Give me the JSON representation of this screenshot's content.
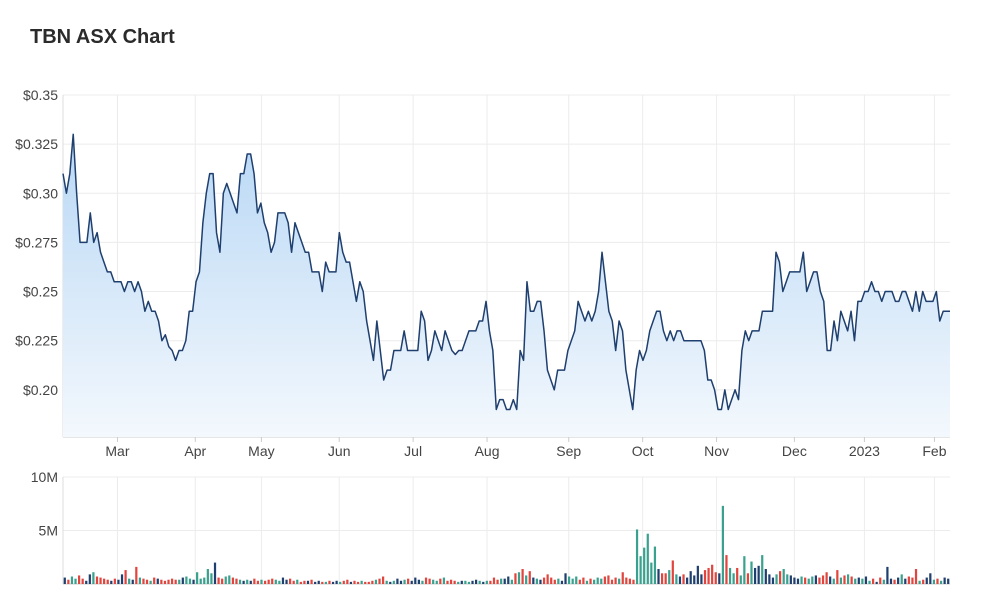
{
  "title": "TBN ASX Chart",
  "colors": {
    "line": "#1f3f6e",
    "area_top": "#b9d8f5",
    "area_bottom": "#f3f8fd",
    "grid": "#ececec",
    "volume_up": "#3aa18f",
    "volume_down": "#e0453e",
    "volume_neutral": "#1f3f6e"
  },
  "chart_data": [
    {
      "type": "area",
      "y_tick_labels": [
        "$0.35",
        "$0.325",
        "$0.30",
        "$0.275",
        "$0.25",
        "$0.225",
        "$0.20"
      ],
      "y_ticks": [
        0.35,
        0.325,
        0.3,
        0.275,
        0.25,
        0.225,
        0.2
      ],
      "ylim": [
        0.176,
        0.35
      ],
      "xlim": [
        0,
        228
      ],
      "x_tick_labels": [
        "Mar",
        "Apr",
        "May",
        "Jun",
        "Jul",
        "Aug",
        "Sep",
        "Oct",
        "Nov",
        "Dec",
        "2023",
        "Feb"
      ],
      "x_ticks": [
        14,
        34,
        51,
        71,
        90,
        109,
        130,
        149,
        168,
        188,
        206,
        224
      ],
      "grid": true,
      "series": [
        {
          "values": [
            0.31,
            0.3,
            0.31,
            0.33,
            0.3,
            0.275,
            0.275,
            0.275,
            0.29,
            0.275,
            0.28,
            0.27,
            0.265,
            0.26,
            0.26,
            0.255,
            0.255,
            0.255,
            0.25,
            0.255,
            0.255,
            0.25,
            0.255,
            0.25,
            0.24,
            0.245,
            0.24,
            0.24,
            0.235,
            0.225,
            0.228,
            0.222,
            0.22,
            0.215,
            0.22,
            0.22,
            0.225,
            0.24,
            0.24,
            0.255,
            0.26,
            0.285,
            0.3,
            0.31,
            0.31,
            0.28,
            0.27,
            0.3,
            0.305,
            0.3,
            0.295,
            0.29,
            0.31,
            0.31,
            0.32,
            0.32,
            0.31,
            0.29,
            0.295,
            0.285,
            0.28,
            0.27,
            0.275,
            0.29,
            0.29,
            0.29,
            0.285,
            0.27,
            0.285,
            0.28,
            0.275,
            0.27,
            0.27,
            0.26,
            0.26,
            0.26,
            0.25,
            0.265,
            0.26,
            0.26,
            0.26,
            0.28,
            0.27,
            0.265,
            0.265,
            0.255,
            0.245,
            0.255,
            0.25,
            0.235,
            0.225,
            0.215,
            0.235,
            0.22,
            0.205,
            0.21,
            0.21,
            0.22,
            0.22,
            0.22,
            0.23,
            0.22,
            0.22,
            0.22,
            0.22,
            0.24,
            0.235,
            0.215,
            0.22,
            0.23,
            0.225,
            0.22,
            0.23,
            0.225,
            0.22,
            0.218,
            0.22,
            0.22,
            0.225,
            0.23,
            0.23,
            0.23,
            0.235,
            0.235,
            0.245,
            0.23,
            0.22,
            0.19,
            0.195,
            0.195,
            0.19,
            0.19,
            0.195,
            0.19,
            0.22,
            0.215,
            0.255,
            0.24,
            0.24,
            0.245,
            0.245,
            0.23,
            0.21,
            0.205,
            0.2,
            0.21,
            0.21,
            0.21,
            0.22,
            0.225,
            0.23,
            0.245,
            0.24,
            0.235,
            0.24,
            0.235,
            0.24,
            0.25,
            0.27,
            0.255,
            0.24,
            0.235,
            0.22,
            0.235,
            0.23,
            0.21,
            0.2,
            0.19,
            0.21,
            0.22,
            0.215,
            0.22,
            0.23,
            0.235,
            0.24,
            0.24,
            0.23,
            0.225,
            0.23,
            0.225,
            0.23,
            0.23,
            0.225,
            0.225,
            0.225,
            0.225,
            0.225,
            0.225,
            0.22,
            0.205,
            0.205,
            0.2,
            0.19,
            0.19,
            0.2,
            0.19,
            0.195,
            0.2,
            0.195,
            0.22,
            0.23,
            0.225,
            0.23,
            0.23,
            0.23,
            0.24,
            0.24,
            0.24,
            0.24,
            0.27,
            0.265,
            0.25,
            0.255,
            0.26,
            0.26,
            0.26,
            0.26,
            0.27,
            0.25,
            0.255,
            0.26,
            0.26,
            0.25,
            0.245,
            0.22,
            0.22,
            0.235,
            0.225,
            0.24,
            0.235,
            0.23,
            0.24,
            0.225,
            0.245,
            0.245,
            0.25,
            0.25,
            0.255,
            0.25,
            0.25,
            0.245,
            0.25,
            0.25,
            0.25,
            0.245,
            0.245,
            0.25,
            0.25,
            0.245,
            0.24,
            0.25,
            0.24,
            0.25,
            0.245,
            0.245,
            0.245,
            0.25,
            0.235,
            0.24,
            0.24,
            0.24
          ]
        }
      ]
    },
    {
      "type": "bar",
      "y_tick_labels": [
        "10M",
        "5M"
      ],
      "y_ticks": [
        10000000,
        5000000
      ],
      "ylim": [
        0,
        10000000
      ],
      "grid": true,
      "series": [
        {
          "values": [
            0.6,
            0.4,
            0.7,
            0.5,
            0.8,
            0.5,
            0.3,
            0.9,
            1.1,
            0.7,
            0.6,
            0.5,
            0.4,
            0.3,
            0.5,
            0.4,
            0.9,
            1.3,
            0.5,
            0.4,
            1.6,
            0.6,
            0.5,
            0.4,
            0.3,
            0.6,
            0.5,
            0.4,
            0.3,
            0.4,
            0.5,
            0.4,
            0.4,
            0.6,
            0.7,
            0.5,
            0.4,
            1.1,
            0.5,
            0.6,
            1.4,
            1.0,
            2.0,
            0.6,
            0.5,
            0.7,
            0.8,
            0.6,
            0.5,
            0.4,
            0.3,
            0.4,
            0.3,
            0.5,
            0.3,
            0.4,
            0.3,
            0.4,
            0.5,
            0.4,
            0.3,
            0.6,
            0.4,
            0.5,
            0.3,
            0.4,
            0.2,
            0.3,
            0.3,
            0.4,
            0.2,
            0.3,
            0.2,
            0.2,
            0.3,
            0.2,
            0.3,
            0.2,
            0.3,
            0.4,
            0.2,
            0.3,
            0.2,
            0.3,
            0.2,
            0.2,
            0.3,
            0.4,
            0.5,
            0.7,
            0.3,
            0.2,
            0.3,
            0.5,
            0.3,
            0.4,
            0.5,
            0.3,
            0.6,
            0.4,
            0.3,
            0.6,
            0.5,
            0.4,
            0.3,
            0.5,
            0.6,
            0.3,
            0.4,
            0.3,
            0.2,
            0.3,
            0.3,
            0.2,
            0.3,
            0.4,
            0.3,
            0.2,
            0.3,
            0.3,
            0.6,
            0.4,
            0.5,
            0.5,
            0.7,
            0.4,
            1.0,
            1.1,
            1.4,
            0.8,
            1.2,
            0.6,
            0.5,
            0.4,
            0.6,
            0.9,
            0.6,
            0.4,
            0.5,
            0.3,
            1.0,
            0.7,
            0.5,
            0.7,
            0.4,
            0.6,
            0.3,
            0.5,
            0.4,
            0.6,
            0.5,
            0.7,
            0.8,
            0.4,
            0.6,
            0.5,
            1.1,
            0.6,
            0.5,
            0.4,
            5.1,
            2.6,
            3.4,
            4.7,
            2.0,
            3.5,
            1.4,
            1.0,
            1.0,
            1.3,
            2.2,
            0.9,
            0.7,
            0.9,
            0.6,
            1.2,
            0.8,
            1.7,
            0.9,
            1.3,
            1.5,
            1.8,
            1.1,
            1.0,
            7.3,
            2.7,
            1.5,
            1.0,
            1.5,
            0.8,
            2.6,
            1.0,
            2.1,
            1.5,
            1.7,
            2.7,
            1.4,
            0.9,
            0.6,
            0.9,
            1.2,
            1.4,
            0.9,
            0.8,
            0.6,
            0.5,
            0.7,
            0.6,
            0.5,
            0.7,
            0.8,
            0.6,
            0.8,
            1.1,
            0.7,
            0.5,
            1.3,
            0.6,
            0.8,
            0.9,
            0.7,
            0.5,
            0.6,
            0.5,
            0.7,
            0.3,
            0.5,
            0.2,
            0.6,
            0.4,
            1.6,
            0.5,
            0.4,
            0.6,
            0.9,
            0.5,
            0.7,
            0.6,
            1.4,
            0.3,
            0.4,
            0.6,
            1.0,
            0.4,
            0.5,
            0.3,
            0.6,
            0.5
          ]
        }
      ]
    }
  ]
}
